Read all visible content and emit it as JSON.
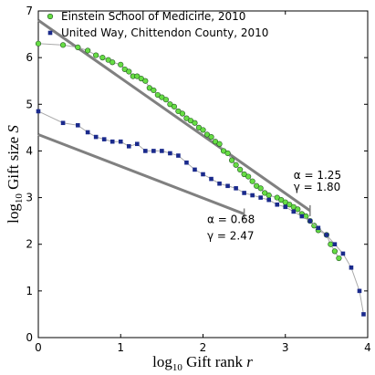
{
  "chart_data": {
    "type": "scatter",
    "x_label": [
      "log",
      "10",
      " Gift rank ",
      "r"
    ],
    "y_label": [
      "log",
      "10",
      " Gift size ",
      "S"
    ],
    "xlim": [
      0,
      4
    ],
    "ylim": [
      0,
      7
    ],
    "xticks": [
      0,
      1,
      2,
      3,
      4
    ],
    "yticks": [
      0,
      1,
      2,
      3,
      4,
      5,
      6,
      7
    ],
    "grid": false,
    "legend": "top-left",
    "series": [
      {
        "name": "Einstein School of Medicine, 2010",
        "color": "#66dd44",
        "marker": "circle",
        "x": [
          0,
          0.3,
          0.48,
          0.6,
          0.7,
          0.78,
          0.85,
          0.9,
          1.0,
          1.05,
          1.1,
          1.15,
          1.2,
          1.25,
          1.3,
          1.35,
          1.4,
          1.45,
          1.5,
          1.55,
          1.6,
          1.65,
          1.7,
          1.75,
          1.8,
          1.85,
          1.9,
          1.95,
          2.0,
          2.05,
          2.1,
          2.15,
          2.2,
          2.25,
          2.3,
          2.35,
          2.4,
          2.45,
          2.5,
          2.55,
          2.6,
          2.65,
          2.7,
          2.75,
          2.8,
          2.9,
          2.95,
          3.0,
          3.05,
          3.1,
          3.15,
          3.2,
          3.25,
          3.3,
          3.35,
          3.4,
          3.5,
          3.55,
          3.6,
          3.65
        ],
        "values": [
          6.3,
          6.27,
          6.22,
          6.15,
          6.05,
          6.0,
          5.95,
          5.9,
          5.85,
          5.75,
          5.7,
          5.6,
          5.6,
          5.55,
          5.5,
          5.35,
          5.3,
          5.2,
          5.15,
          5.1,
          5.0,
          4.95,
          4.85,
          4.8,
          4.7,
          4.65,
          4.6,
          4.5,
          4.45,
          4.35,
          4.3,
          4.2,
          4.15,
          4.0,
          3.95,
          3.8,
          3.7,
          3.6,
          3.5,
          3.45,
          3.35,
          3.25,
          3.2,
          3.1,
          3.05,
          3.0,
          2.95,
          2.9,
          2.85,
          2.8,
          2.75,
          2.65,
          2.6,
          2.5,
          2.4,
          2.3,
          2.2,
          2.0,
          1.85,
          1.7
        ]
      },
      {
        "name": "United Way, Chittendon County, 2010",
        "color": "#1a2a8c",
        "marker": "square",
        "x": [
          0,
          0.3,
          0.48,
          0.6,
          0.7,
          0.8,
          0.9,
          1.0,
          1.1,
          1.2,
          1.3,
          1.4,
          1.5,
          1.6,
          1.7,
          1.8,
          1.9,
          2.0,
          2.1,
          2.2,
          2.3,
          2.4,
          2.5,
          2.6,
          2.7,
          2.8,
          2.9,
          3.0,
          3.1,
          3.2,
          3.3,
          3.4,
          3.5,
          3.6,
          3.7,
          3.8,
          3.9,
          3.95
        ],
        "values": [
          4.85,
          4.6,
          4.55,
          4.4,
          4.3,
          4.25,
          4.2,
          4.2,
          4.1,
          4.15,
          4.0,
          4.0,
          4.0,
          3.95,
          3.9,
          3.75,
          3.6,
          3.5,
          3.4,
          3.3,
          3.25,
          3.2,
          3.1,
          3.05,
          3.0,
          2.95,
          2.85,
          2.8,
          2.7,
          2.6,
          2.5,
          2.35,
          2.2,
          2.0,
          1.8,
          1.5,
          1.0,
          0.5
        ]
      }
    ],
    "fits": [
      {
        "x": [
          0,
          3.3
        ],
        "values": [
          6.8,
          2.72
        ],
        "color": "#808080",
        "labels": [
          "α = 1.25",
          "γ = 1.80"
        ]
      },
      {
        "x": [
          0,
          2.5
        ],
        "values": [
          4.35,
          2.65
        ],
        "color": "#808080",
        "labels": [
          "α = 0.68",
          "γ = 2.47"
        ]
      }
    ]
  }
}
